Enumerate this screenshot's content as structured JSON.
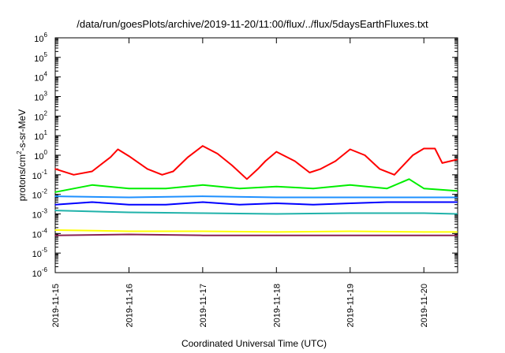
{
  "chart_data": {
    "type": "line",
    "title": "/data/run/goesPlots/archive/2019-11-20/11:00/flux/../flux/5daysEarthFluxes.txt",
    "xlabel": "Coordinated Universal Time (UTC)",
    "ylabel_parts": [
      "protons/cm",
      "2",
      "-s-sr-MeV"
    ],
    "yscale": "log",
    "ylim_exp": [
      -6,
      6
    ],
    "y_tick_labels": [
      {
        "base": "10",
        "exp": "-6"
      },
      {
        "base": "10",
        "exp": "-5"
      },
      {
        "base": "10",
        "exp": "-4"
      },
      {
        "base": "10",
        "exp": "-3"
      },
      {
        "base": "10",
        "exp": "-2"
      },
      {
        "base": "10",
        "exp": "-1"
      },
      {
        "base": "10",
        "exp": "0"
      },
      {
        "base": "10",
        "exp": "1"
      },
      {
        "base": "10",
        "exp": "2"
      },
      {
        "base": "10",
        "exp": "3"
      },
      {
        "base": "10",
        "exp": "4"
      },
      {
        "base": "10",
        "exp": "5"
      },
      {
        "base": "10",
        "exp": "6"
      }
    ],
    "x_range": [
      "2019-11-15",
      "2019-11-20 11:00"
    ],
    "x_tick_labels": [
      "2019-11-15",
      "2019-11-16",
      "2019-11-17",
      "2019-11-18",
      "2019-11-19",
      "2019-11-20"
    ],
    "grid": false,
    "legend": "none",
    "series": [
      {
        "color": "#ff0000",
        "x_days": [
          0,
          0.25,
          0.5,
          0.75,
          0.85,
          1.0,
          1.25,
          1.45,
          1.6,
          1.8,
          2.0,
          2.2,
          2.4,
          2.6,
          2.75,
          2.85,
          3.0,
          3.25,
          3.45,
          3.6,
          3.8,
          4.0,
          4.2,
          4.4,
          4.6,
          4.75,
          4.85,
          5.0,
          5.15,
          5.25,
          5.45
        ],
        "y": [
          0.2,
          0.1,
          0.15,
          0.8,
          2.0,
          0.9,
          0.2,
          0.1,
          0.15,
          0.8,
          3.0,
          1.2,
          0.3,
          0.06,
          0.2,
          0.5,
          1.5,
          0.5,
          0.13,
          0.2,
          0.5,
          2.0,
          1.0,
          0.2,
          0.1,
          0.4,
          1.0,
          2.2,
          2.2,
          0.4,
          0.6
        ]
      },
      {
        "color": "#00ee00",
        "x_days": [
          0,
          0.5,
          1.0,
          1.5,
          2.0,
          2.5,
          3.0,
          3.5,
          4.0,
          4.5,
          4.8,
          5.0,
          5.45
        ],
        "y": [
          0.013,
          0.03,
          0.02,
          0.02,
          0.03,
          0.02,
          0.025,
          0.02,
          0.03,
          0.02,
          0.06,
          0.02,
          0.015
        ]
      },
      {
        "color": "#1e90ff",
        "x_days": [
          0,
          1.0,
          2.0,
          3.0,
          4.0,
          5.0,
          5.45
        ],
        "y": [
          0.008,
          0.007,
          0.008,
          0.007,
          0.007,
          0.007,
          0.007
        ]
      },
      {
        "color": "#0000ff",
        "x_days": [
          0,
          0.5,
          1.0,
          1.5,
          2.0,
          2.5,
          3.0,
          3.5,
          4.0,
          4.5,
          5.0,
          5.45
        ],
        "y": [
          0.003,
          0.004,
          0.003,
          0.003,
          0.004,
          0.003,
          0.0035,
          0.003,
          0.0035,
          0.004,
          0.004,
          0.004
        ]
      },
      {
        "color": "#20b2aa",
        "x_days": [
          0,
          1.0,
          2.0,
          3.0,
          4.0,
          5.0,
          5.45
        ],
        "y": [
          0.0015,
          0.0012,
          0.0011,
          0.001,
          0.0011,
          0.0011,
          0.001
        ]
      },
      {
        "color": "#ffff00",
        "x_days": [
          0,
          1.0,
          2.0,
          3.0,
          4.0,
          5.0,
          5.45
        ],
        "y": [
          0.00015,
          0.00013,
          0.00013,
          0.00012,
          0.00013,
          0.00012,
          0.00012
        ]
      },
      {
        "color": "#8b2252",
        "x_days": [
          0,
          1.0,
          2.0,
          3.0,
          4.0,
          5.0,
          5.45
        ],
        "y": [
          8e-05,
          9e-05,
          8e-05,
          8e-05,
          8e-05,
          8e-05,
          8e-05
        ]
      }
    ]
  }
}
